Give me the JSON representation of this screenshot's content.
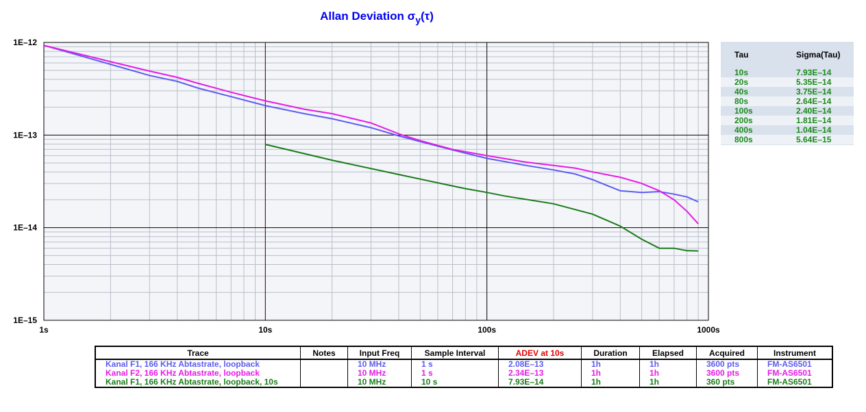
{
  "chart_data": {
    "type": "line",
    "title": "Allan Deviation σy(τ)",
    "title_main": "Allan Deviation σ",
    "title_sub": "y",
    "title_tail": "(τ)",
    "xscale": "log",
    "yscale": "log",
    "xlim": [
      1,
      1000
    ],
    "ylim": [
      1e-15,
      1e-12
    ],
    "x_tick_labels": [
      "1s",
      "10s",
      "100s",
      "1000s"
    ],
    "y_tick_labels": [
      "1E–12",
      "1E–13",
      "1E–14",
      "1E–15"
    ],
    "grid": true,
    "marker_line": {
      "x": 10,
      "color": "#cc0000",
      "style": "dashed"
    },
    "series": [
      {
        "name": "Kanal F1, 166 KHz Abtastrate, loopback",
        "color": "#5b5bf0",
        "points": [
          [
            1,
            9.3e-13
          ],
          [
            2,
            5.8e-13
          ],
          [
            3,
            4.4e-13
          ],
          [
            4,
            3.8e-13
          ],
          [
            5,
            3.2e-13
          ],
          [
            7,
            2.6e-13
          ],
          [
            10,
            2.08e-13
          ],
          [
            15,
            1.7e-13
          ],
          [
            20,
            1.5e-13
          ],
          [
            30,
            1.2e-13
          ],
          [
            40,
            9.8e-14
          ],
          [
            50,
            8.5e-14
          ],
          [
            70,
            6.9e-14
          ],
          [
            100,
            5.6e-14
          ],
          [
            150,
            4.7e-14
          ],
          [
            200,
            4.2e-14
          ],
          [
            250,
            3.8e-14
          ],
          [
            300,
            3.3e-14
          ],
          [
            400,
            2.5e-14
          ],
          [
            500,
            2.4e-14
          ],
          [
            600,
            2.45e-14
          ],
          [
            700,
            2.3e-14
          ],
          [
            800,
            2.15e-14
          ],
          [
            900,
            1.9e-14
          ]
        ]
      },
      {
        "name": "Kanal F2, 166 KHz Abtastrate, loopback",
        "color": "#e619e6",
        "points": [
          [
            1,
            9.3e-13
          ],
          [
            2,
            6.2e-13
          ],
          [
            3,
            4.9e-13
          ],
          [
            4,
            4.2e-13
          ],
          [
            5,
            3.6e-13
          ],
          [
            7,
            2.9e-13
          ],
          [
            10,
            2.34e-13
          ],
          [
            15,
            1.9e-13
          ],
          [
            20,
            1.7e-13
          ],
          [
            30,
            1.35e-13
          ],
          [
            40,
            1.03e-13
          ],
          [
            50,
            8.7e-14
          ],
          [
            70,
            7e-14
          ],
          [
            100,
            6e-14
          ],
          [
            150,
            5.1e-14
          ],
          [
            200,
            4.7e-14
          ],
          [
            250,
            4.4e-14
          ],
          [
            300,
            4e-14
          ],
          [
            400,
            3.5e-14
          ],
          [
            500,
            3e-14
          ],
          [
            600,
            2.5e-14
          ],
          [
            700,
            2e-14
          ],
          [
            800,
            1.5e-14
          ],
          [
            900,
            1.1e-14
          ]
        ]
      },
      {
        "name": "Kanal F1, 166 KHz Abtastrate, loopback, 10s",
        "color": "#1a7a1a",
        "points": [
          [
            10,
            7.93e-14
          ],
          [
            20,
            5.35e-14
          ],
          [
            40,
            3.75e-14
          ],
          [
            60,
            3.05e-14
          ],
          [
            80,
            2.64e-14
          ],
          [
            100,
            2.4e-14
          ],
          [
            120,
            2.2e-14
          ],
          [
            200,
            1.81e-14
          ],
          [
            300,
            1.4e-14
          ],
          [
            400,
            1.04e-14
          ],
          [
            500,
            7.5e-15
          ],
          [
            600,
            6e-15
          ],
          [
            700,
            6e-15
          ],
          [
            800,
            5.64e-15
          ],
          [
            900,
            5.6e-15
          ]
        ]
      }
    ]
  },
  "tau_table": {
    "headers": [
      "Tau",
      "Sigma(Tau)"
    ],
    "rows": [
      [
        "10s",
        "7.93E–14"
      ],
      [
        "20s",
        "5.35E–14"
      ],
      [
        "40s",
        "3.75E–14"
      ],
      [
        "80s",
        "2.64E–14"
      ],
      [
        "100s",
        "2.40E–14"
      ],
      [
        "200s",
        "1.81E–14"
      ],
      [
        "400s",
        "1.04E–14"
      ],
      [
        "800s",
        "5.64E–15"
      ]
    ],
    "row_color": "#1a8a1a"
  },
  "trace_table": {
    "headers": [
      "Trace",
      "Notes",
      "Input Freq",
      "Sample Interval",
      "ADEV at 10s",
      "Duration",
      "Elapsed",
      "Acquired",
      "Instrument"
    ],
    "adev_header_color": "#e60000",
    "rows": [
      {
        "color": "#5b5bf0",
        "cells": [
          "Kanal F1, 166 KHz Abtastrate, loopback",
          "",
          "10 MHz",
          "1 s",
          "2.08E–13",
          "1h",
          "1h",
          "3600 pts",
          "FM-AS6501"
        ]
      },
      {
        "color": "#e619e6",
        "cells": [
          "Kanal F2, 166 KHz Abtastrate, loopback",
          "",
          "10 MHz",
          "1 s",
          "2.34E–13",
          "1h",
          "1h",
          "3600 pts",
          "FM-AS6501"
        ]
      },
      {
        "color": "#1a7a1a",
        "cells": [
          "Kanal F1, 166 KHz Abtastrate, loopback, 10s",
          "",
          "10 MHz",
          "10 s",
          "7.93E–14",
          "1h",
          "1h",
          "360 pts",
          "FM-AS6501"
        ]
      }
    ]
  }
}
